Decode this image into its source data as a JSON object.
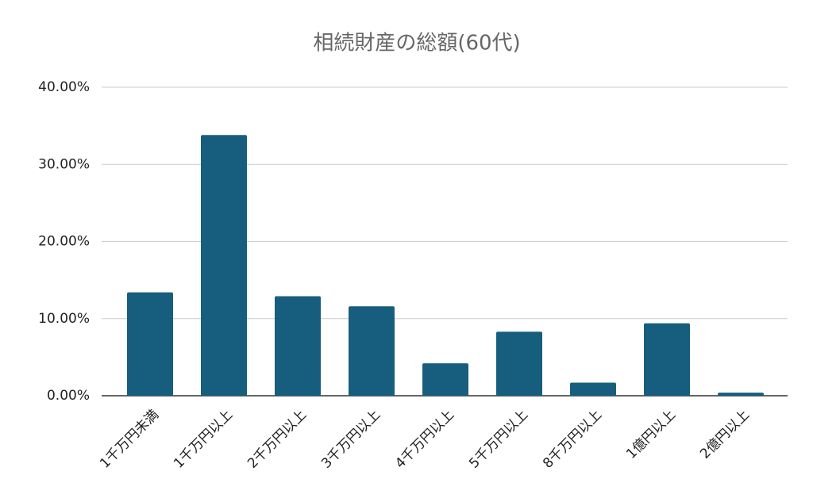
{
  "chart_data": {
    "type": "bar",
    "title": "相続財産の総額(60代)",
    "categories": [
      "1千万円未満",
      "1千万円以上",
      "2千万円以上",
      "3千万円以上",
      "4千万円以上",
      "5千万円以上",
      "8千万円以上",
      "1億円以上",
      "2億円以上"
    ],
    "values": [
      13.4,
      33.8,
      12.9,
      11.6,
      4.2,
      8.3,
      1.7,
      9.4,
      0.4
    ],
    "color": "#175e7e",
    "ylim": [
      0,
      40
    ],
    "yticks": [
      {
        "value": 0,
        "label": "0.00%"
      },
      {
        "value": 10,
        "label": "10.00%"
      },
      {
        "value": 20,
        "label": "20.00%"
      },
      {
        "value": 30,
        "label": "30.00%"
      },
      {
        "value": 40,
        "label": "40.00%"
      }
    ],
    "grid": true
  }
}
